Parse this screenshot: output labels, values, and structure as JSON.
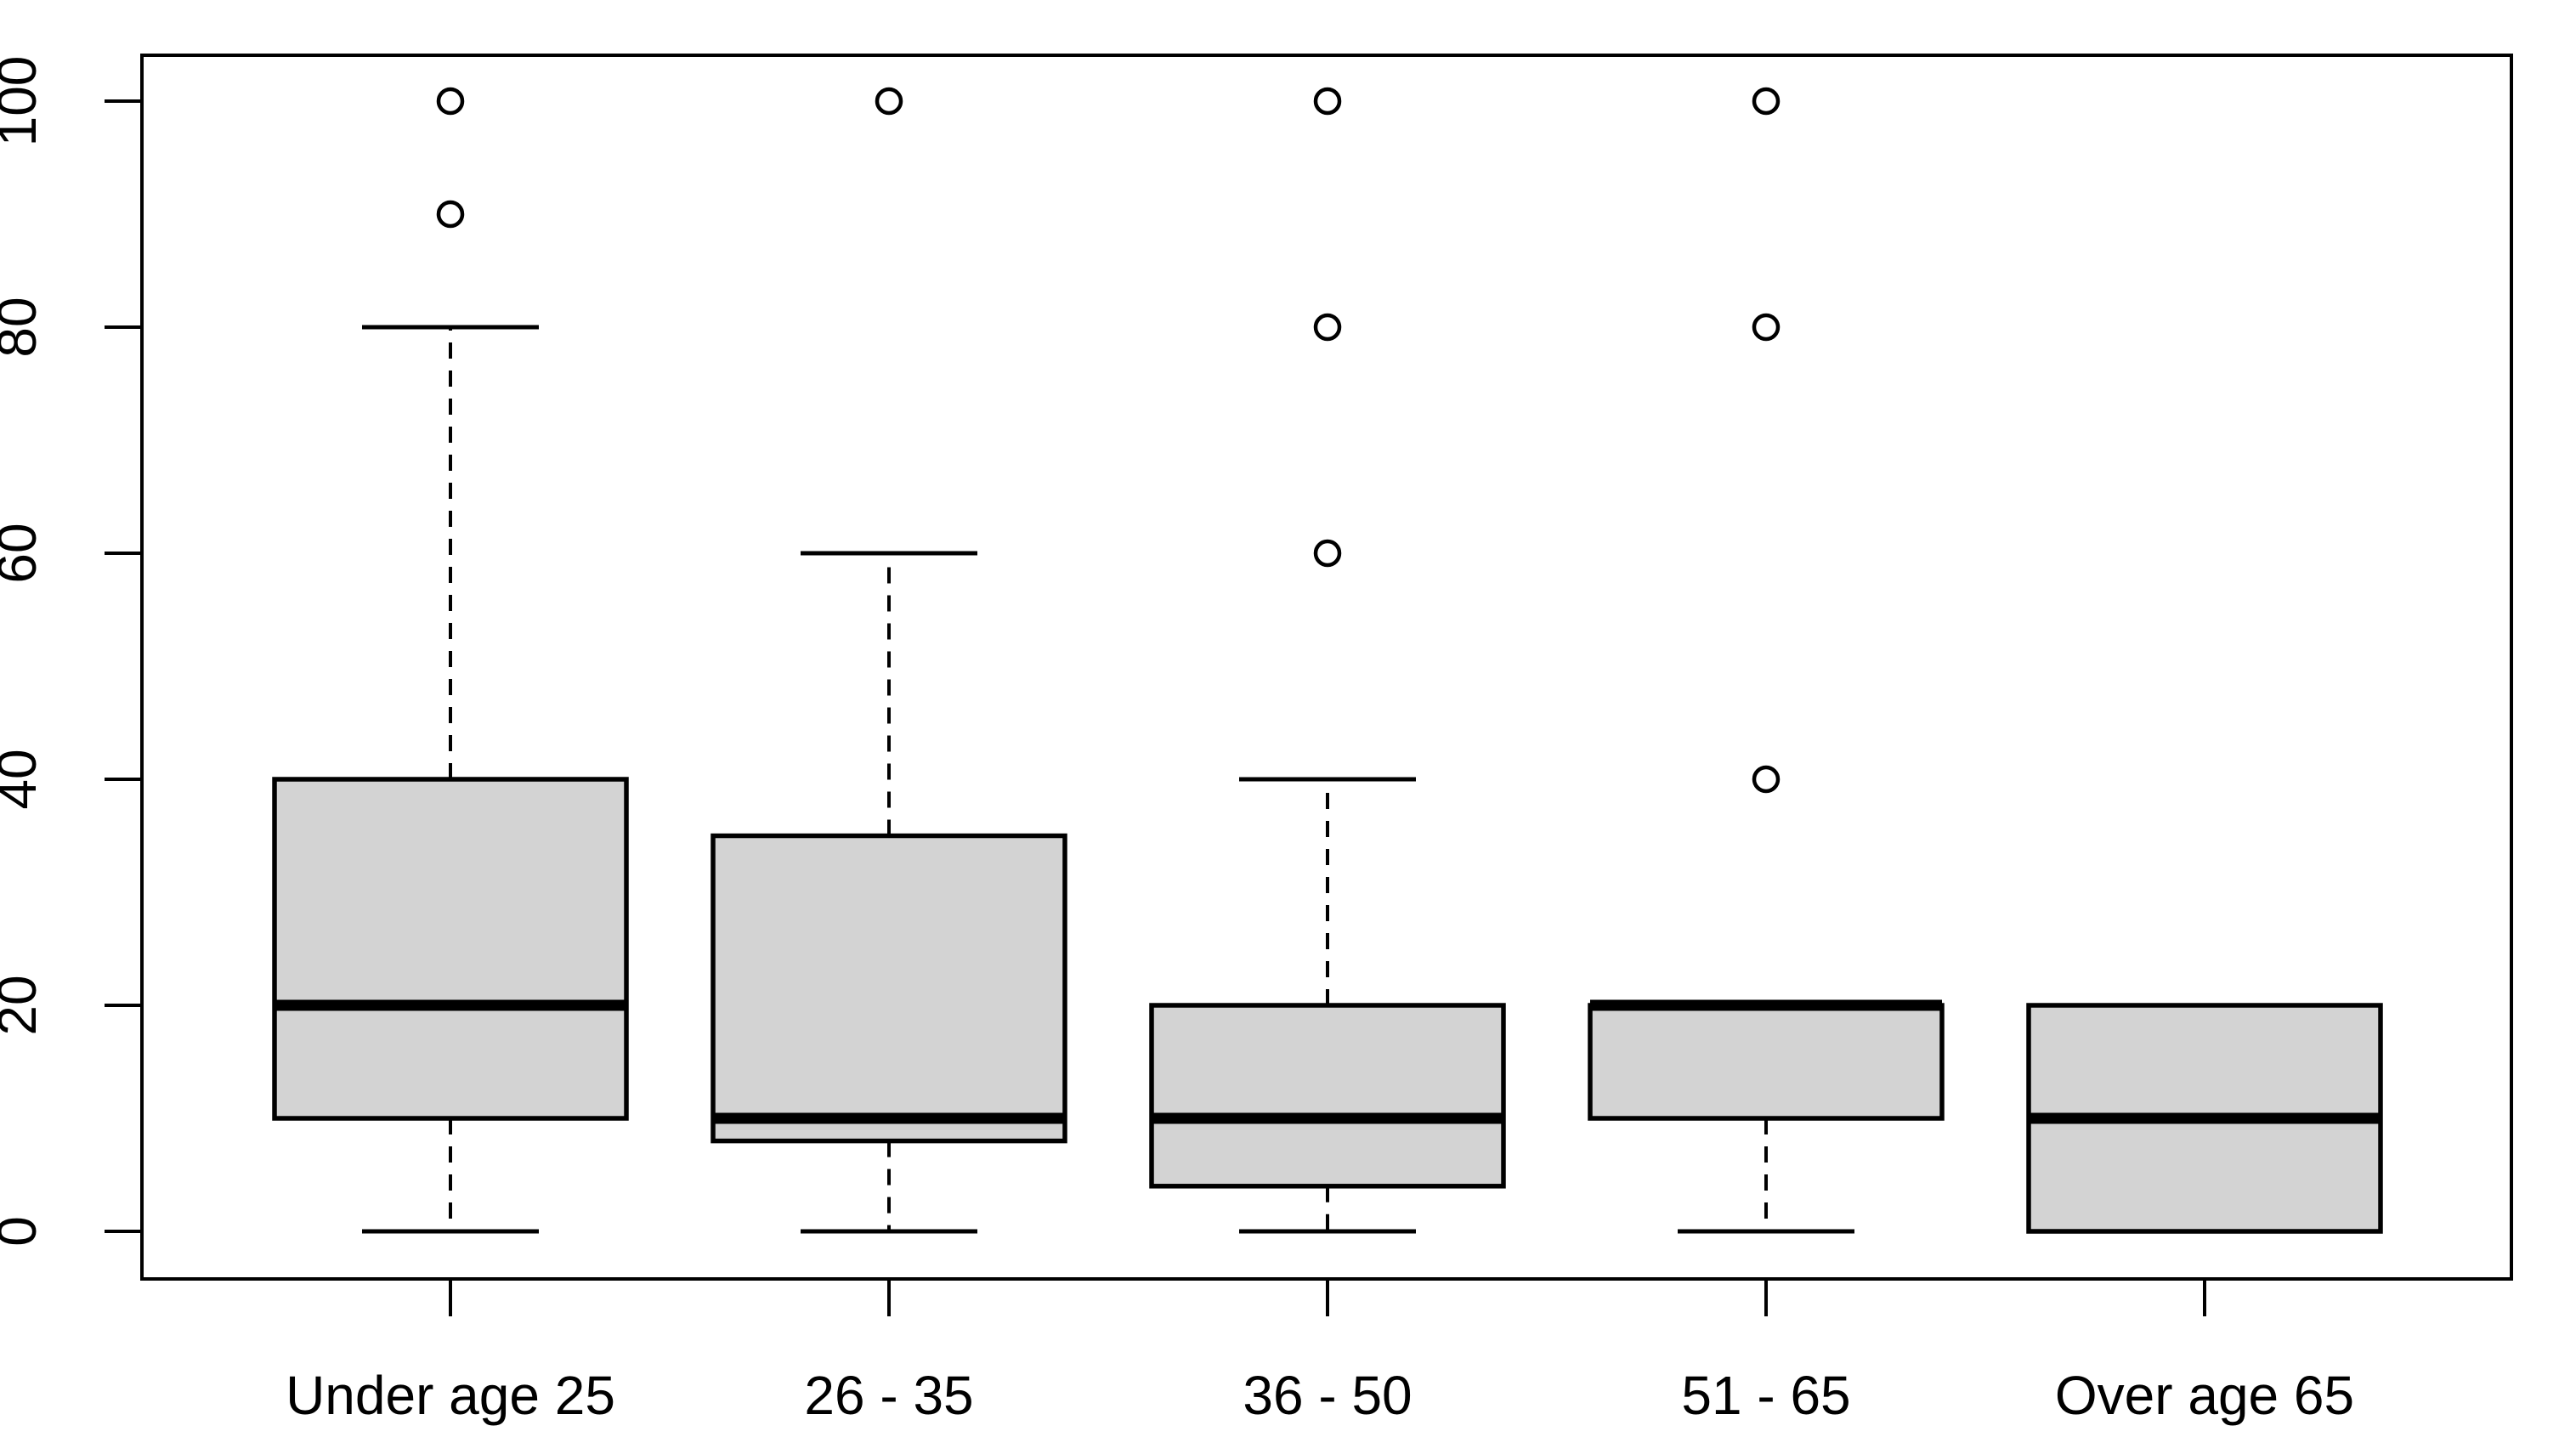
{
  "figure": {
    "background_color": "#ffffff",
    "plot_style": "r-base-boxplot"
  },
  "chart_data": {
    "type": "boxplot",
    "title": "",
    "xlabel": "",
    "ylabel": "",
    "categories": [
      "Under age 25",
      "26 - 35",
      "36 - 50",
      "51 - 65",
      "Over age 65"
    ],
    "boxes": [
      {
        "label": "Under age 25",
        "whisker_low": 0,
        "q1": 10,
        "median": 20,
        "q3": 40,
        "whisker_high": 80,
        "outliers": [
          90,
          100
        ]
      },
      {
        "label": "26 - 35",
        "whisker_low": 0,
        "q1": 8,
        "median": 10,
        "q3": 35,
        "whisker_high": 60,
        "outliers": [
          100
        ]
      },
      {
        "label": "36 - 50",
        "whisker_low": 0,
        "q1": 4,
        "median": 10,
        "q3": 20,
        "whisker_high": 40,
        "outliers": [
          60,
          80,
          100
        ]
      },
      {
        "label": "51 - 65",
        "whisker_low": 0,
        "q1": 10,
        "median": 20,
        "q3": 20,
        "whisker_high": 20,
        "outliers": [
          40,
          80,
          100
        ]
      },
      {
        "label": "Over age 65",
        "whisker_low": 0,
        "q1": 0,
        "median": 10,
        "q3": 20,
        "whisker_high": 20,
        "outliers": []
      }
    ],
    "ylim": [
      0,
      100
    ],
    "yticks": [
      0,
      20,
      40,
      60,
      80,
      100
    ],
    "grid": false,
    "legend": null,
    "box_fill_color": "#d3d3d3",
    "line_color": "#000000",
    "whisker_line_style": "dashed",
    "outlier_marker": "open-circle"
  }
}
